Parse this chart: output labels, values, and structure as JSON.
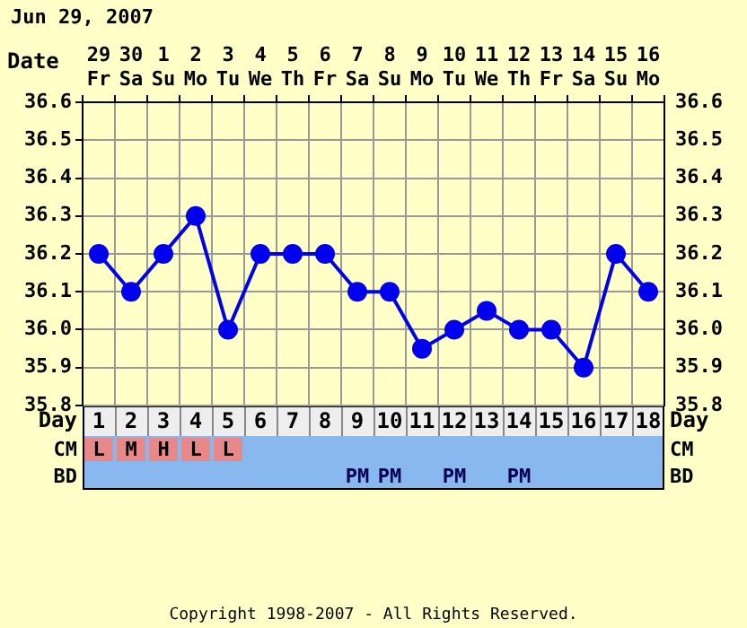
{
  "chart_data": [
    {
      "type": "line",
      "title": "Jun 29, 2007",
      "xlabel": "Date",
      "categories": [
        "29 Fr",
        "30 Sa",
        "1 Su",
        "2 Mo",
        "3 Tu",
        "4 We",
        "5 Th",
        "6 Fr",
        "7 Sa",
        "8 Su",
        "9 Mo",
        "10 Tu",
        "11 We",
        "12 Th",
        "13 Fr",
        "14 Sa",
        "15 Su",
        "16 Mo"
      ],
      "series": [
        {
          "color": "#0000ee",
          "values": [
            36.2,
            36.1,
            36.2,
            36.3,
            36.0,
            36.2,
            36.2,
            36.2,
            36.1,
            36.1,
            35.95,
            36.0,
            36.05,
            36.0,
            36.0,
            35.9,
            36.2,
            36.1
          ]
        }
      ],
      "ylim": [
        35.8,
        36.6
      ],
      "yticks": [
        35.8,
        35.9,
        {
          "value": 36,
          "label": "36.0"
        },
        36.1,
        36.2,
        36.3,
        36.4,
        36.5,
        36.6
      ],
      "y2lim": [
        35.8,
        36.6
      ],
      "y2ticks": [
        35.8,
        35.9,
        {
          "value": 36,
          "label": "36.0"
        },
        36.1,
        36.2,
        36.3,
        36.4,
        36.5,
        36.6
      ],
      "x2label": "Day",
      "x2lim": [
        0.5,
        18.5
      ],
      "x2ticks": [
        1,
        2,
        3,
        4,
        5,
        6,
        7,
        8,
        9,
        10,
        11,
        12,
        13,
        14,
        15,
        16,
        17,
        18
      ],
      "grid": true,
      "marker": "circle",
      "annotations": [
        "Copyright 1998-2007 - All Rights Reserved."
      ]
    },
    {
      "type": "other",
      "y_categories": [
        "CM",
        "BD"
      ],
      "cell_labels": [
        [
          "L",
          "M",
          "H",
          "L",
          "L",
          null,
          null,
          null,
          null,
          null,
          null,
          null,
          null,
          null,
          null,
          null,
          null,
          null
        ],
        [
          null,
          null,
          null,
          null,
          null,
          null,
          null,
          null,
          "PM",
          "PM",
          null,
          "PM",
          null,
          "PM",
          null,
          null,
          null,
          null
        ]
      ]
    }
  ]
}
